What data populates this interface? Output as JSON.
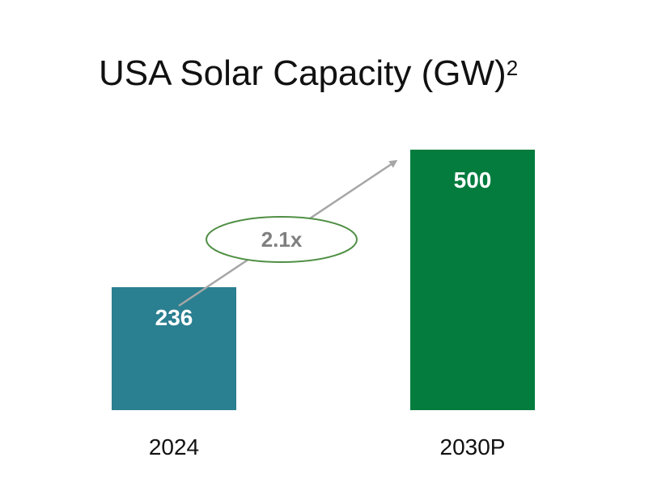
{
  "chart_data": {
    "type": "bar",
    "title": "USA Solar Capacity (GW)",
    "title_superscript": "2",
    "categories": [
      "2024",
      "2030P"
    ],
    "values": [
      236,
      500
    ],
    "value_labels": [
      "236",
      "500"
    ],
    "bar_colors": [
      "#2a7f90",
      "#037c3e"
    ],
    "growth_annotation": "2.1x",
    "annotation_color": "#4f8f44",
    "arrow_color": "#a6a6a6",
    "xlabel": "",
    "ylabel": "",
    "ylim": [
      0,
      500
    ],
    "grid": false,
    "legend": "none"
  }
}
